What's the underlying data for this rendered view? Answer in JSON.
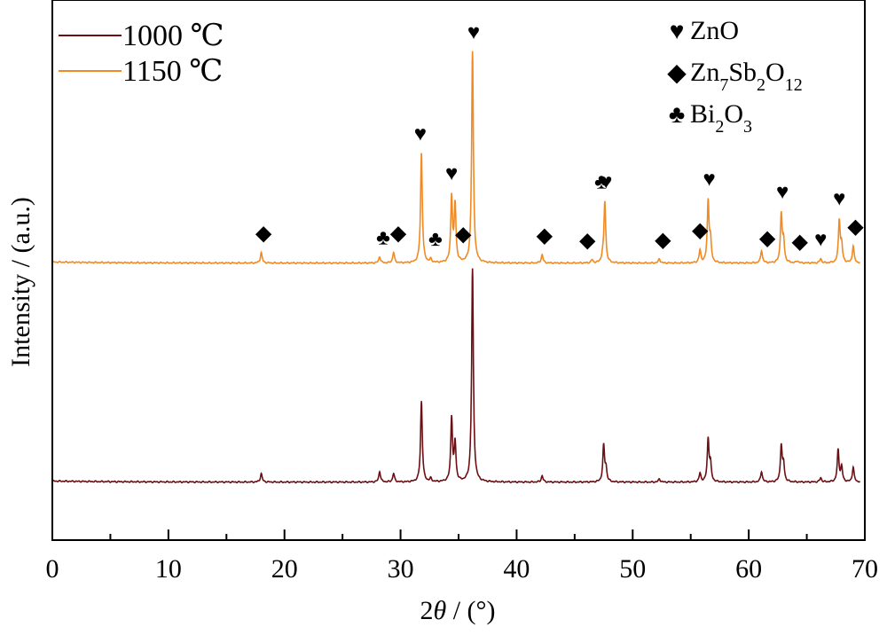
{
  "chart_data": {
    "type": "line",
    "xlabel_main": "2",
    "xlabel_theta": "θ",
    "xlabel_rest": " / (°)",
    "ylabel": "Intensity / (a.u.)",
    "xlim": [
      0,
      70
    ],
    "x_ticks": [
      0,
      10,
      20,
      30,
      40,
      50,
      60,
      70
    ],
    "y_ticks_shown": false,
    "series": [
      {
        "name": "1000 ℃",
        "color": "#6b0f14",
        "baseline": 1.0,
        "peaks": [
          [
            18.0,
            4
          ],
          [
            28.2,
            5
          ],
          [
            29.4,
            4
          ],
          [
            31.8,
            38
          ],
          [
            32.6,
            1.5
          ],
          [
            34.4,
            30
          ],
          [
            34.7,
            18
          ],
          [
            36.2,
            100
          ],
          [
            42.2,
            3
          ],
          [
            47.5,
            17
          ],
          [
            47.7,
            6
          ],
          [
            52.3,
            1.5
          ],
          [
            55.8,
            4
          ],
          [
            56.5,
            20
          ],
          [
            56.7,
            8
          ],
          [
            61.1,
            5
          ],
          [
            62.8,
            17
          ],
          [
            63.0,
            8
          ],
          [
            66.2,
            2
          ],
          [
            67.7,
            15
          ],
          [
            68.0,
            7
          ],
          [
            69.0,
            7
          ]
        ]
      },
      {
        "name": "1150 ℃",
        "color": "#f08a24",
        "baseline": 1.0,
        "peaks": [
          [
            18.0,
            5
          ],
          [
            28.2,
            3
          ],
          [
            29.4,
            5
          ],
          [
            31.8,
            52
          ],
          [
            32.6,
            1.5
          ],
          [
            34.4,
            31
          ],
          [
            34.7,
            27
          ],
          [
            36.2,
            100
          ],
          [
            42.2,
            4
          ],
          [
            46.5,
            1.5
          ],
          [
            47.4,
            2.5
          ],
          [
            47.6,
            29
          ],
          [
            52.3,
            2
          ],
          [
            55.8,
            6
          ],
          [
            56.5,
            29
          ],
          [
            56.7,
            10
          ],
          [
            61.1,
            6
          ],
          [
            62.8,
            23
          ],
          [
            63.0,
            10
          ],
          [
            64.2,
            1
          ],
          [
            66.2,
            2
          ],
          [
            67.8,
            20
          ],
          [
            68.0,
            8
          ],
          [
            69.0,
            8
          ]
        ]
      }
    ],
    "legend": {
      "placement": "top-left",
      "items": [
        {
          "label": "1000 ℃",
          "color": "#6b0f14"
        },
        {
          "label": "1150 ℃",
          "color": "#f08a24"
        }
      ]
    },
    "phase_legend": {
      "placement": "top-right",
      "items": [
        {
          "marker": "♥",
          "label_html": "ZnO"
        },
        {
          "marker": "◆",
          "label_html": "Zn<tspan baseline-shift=\"sub\" font-size=\"20\">7</tspan>Sb<tspan baseline-shift=\"sub\" font-size=\"20\">2</tspan>O<tspan baseline-shift=\"sub\" font-size=\"20\">12</tspan>"
        },
        {
          "marker": "♣",
          "label_html": "Bi<tspan baseline-shift=\"sub\" font-size=\"20\">2</tspan>O<tspan baseline-shift=\"sub\" font-size=\"20\">3</tspan>"
        }
      ]
    },
    "annotations": [
      {
        "symbol": "◆",
        "x": 18.2
      },
      {
        "symbol": "♣",
        "x": 28.5
      },
      {
        "symbol": "◆",
        "x": 29.8
      },
      {
        "symbol": "♥",
        "x": 31.7
      },
      {
        "symbol": "♣",
        "x": 33.0
      },
      {
        "symbol": "♥",
        "x": 34.4
      },
      {
        "symbol": "◆",
        "x": 35.4
      },
      {
        "symbol": "♥",
        "x": 36.3
      },
      {
        "symbol": "◆",
        "x": 42.4
      },
      {
        "symbol": "◆",
        "x": 46.1
      },
      {
        "symbol": "♣",
        "x": 47.3
      },
      {
        "symbol": "♥",
        "x": 47.7
      },
      {
        "symbol": "◆",
        "x": 52.6
      },
      {
        "symbol": "◆",
        "x": 55.8
      },
      {
        "symbol": "♥",
        "x": 56.6
      },
      {
        "symbol": "◆",
        "x": 61.6
      },
      {
        "symbol": "♥",
        "x": 62.9
      },
      {
        "symbol": "◆",
        "x": 64.4
      },
      {
        "symbol": "♥",
        "x": 66.2
      },
      {
        "symbol": "♥",
        "x": 67.8
      },
      {
        "symbol": "◆",
        "x": 69.2
      }
    ]
  }
}
